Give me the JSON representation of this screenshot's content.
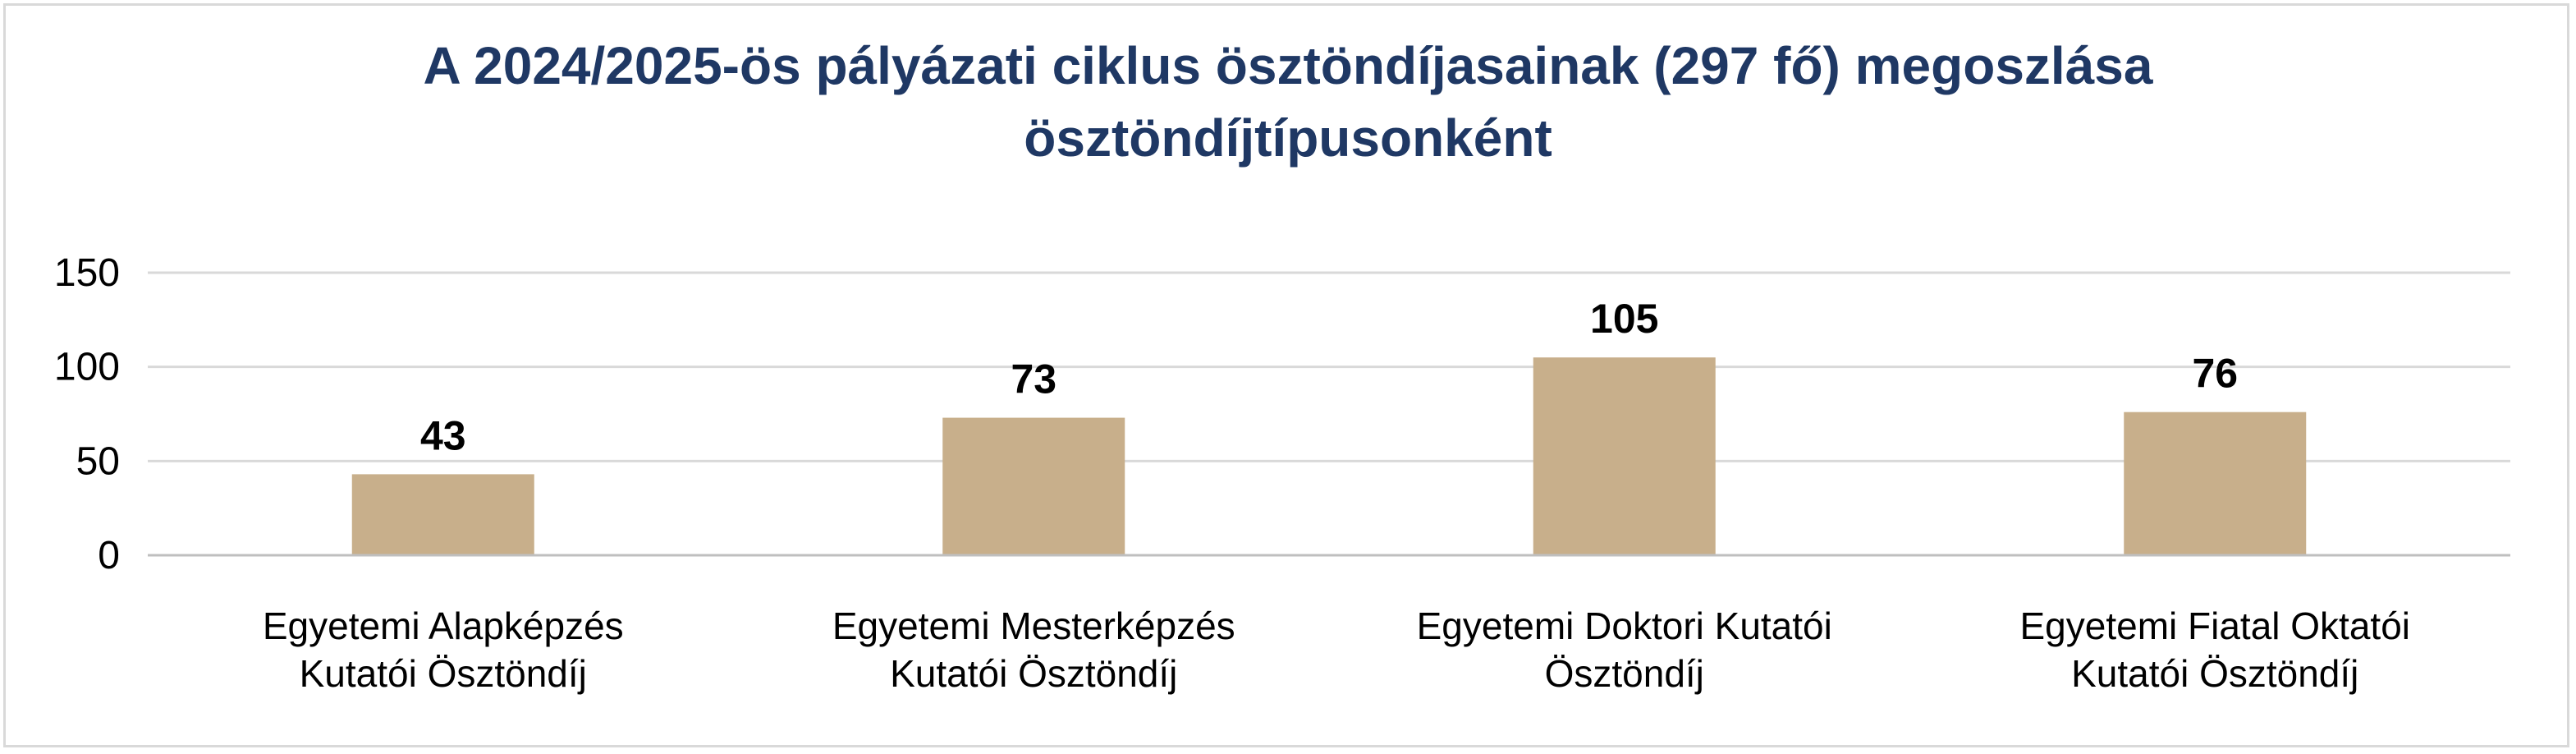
{
  "chart_data": {
    "type": "bar",
    "title_lines": [
      "A 2024/2025-ös pályázati ciklus ösztöndíjasainak (297 fő) megoszlása",
      "ösztöndíjtípusonként"
    ],
    "categories": [
      [
        "Egyetemi Alapképzés",
        "Kutatói Ösztöndíj"
      ],
      [
        "Egyetemi Mesterképzés",
        "Kutatói Ösztöndíj"
      ],
      [
        "Egyetemi Doktori Kutatói",
        "Ösztöndíj"
      ],
      [
        "Egyetemi Fiatal Oktatói",
        "Kutatói Ösztöndíj"
      ]
    ],
    "values": [
      43,
      73,
      105,
      76
    ],
    "data_labels": [
      "43",
      "73",
      "105",
      "76"
    ],
    "yticks": [
      "0",
      "50",
      "100",
      "150"
    ],
    "ylim": [
      0,
      150
    ],
    "xlabel": "",
    "ylabel": "",
    "grid": true,
    "legend": "none",
    "colors": {
      "bar": "#c8af8b",
      "title": "#1f3864",
      "grid": "#d9d9d9",
      "axis": "#bfbfbf",
      "text": "#000000"
    }
  }
}
